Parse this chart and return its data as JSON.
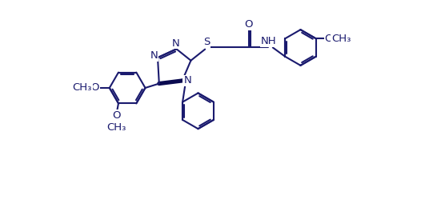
{
  "bg_color": "#ffffff",
  "bond_color": "#1a1a6e",
  "text_color": "#1a1a6e",
  "line_width": 1.5,
  "font_size": 9.5,
  "fig_width": 5.31,
  "fig_height": 2.74,
  "dpi": 100,
  "xlim": [
    -0.3,
    10.8
  ],
  "ylim": [
    -2.8,
    4.8
  ]
}
